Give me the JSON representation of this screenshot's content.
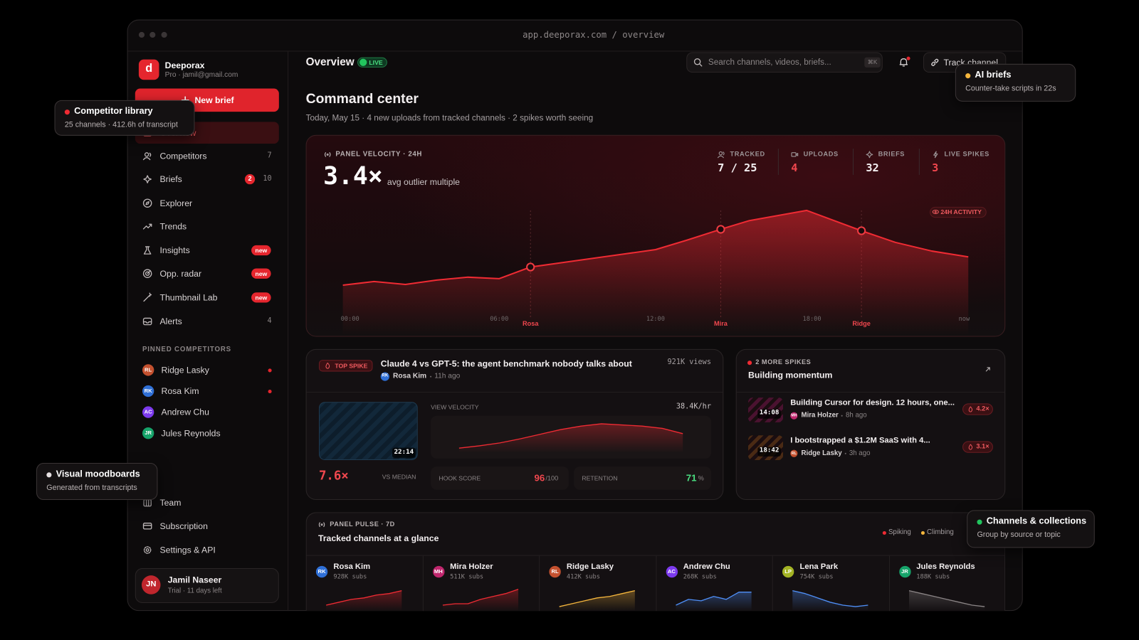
{
  "browser": {
    "url": "app.deeporax.com / overview"
  },
  "sidebar": {
    "brand": {
      "logo": "d",
      "name": "Deeporax",
      "account": "Pro · jamil@gmail.com"
    },
    "new_brief": "New brief",
    "nav": [
      {
        "label": "Overview",
        "active": true
      },
      {
        "label": "Competitors",
        "count": "7"
      },
      {
        "label": "Briefs",
        "badge": "2",
        "count": "10"
      },
      {
        "label": "Explorer"
      },
      {
        "label": "Trends"
      },
      {
        "label": "Insights",
        "tag": "new"
      },
      {
        "label": "Opp. radar",
        "tag": "new"
      },
      {
        "label": "Thumbnail Lab",
        "tag": "new"
      },
      {
        "label": "Alerts",
        "count": "4"
      }
    ],
    "pinned_title": "PINNED COMPETITORS",
    "pinned": [
      {
        "initials": "RL",
        "name": "Ridge Lasky",
        "color": "#c4512f",
        "alert": true
      },
      {
        "initials": "RK",
        "name": "Rosa Kim",
        "color": "#2f6fd6",
        "alert": true
      },
      {
        "initials": "AC",
        "name": "Andrew Chu",
        "color": "#7c3aed",
        "alert": false
      },
      {
        "initials": "JR",
        "name": "Jules Reynolds",
        "color": "#16a36a",
        "alert": false
      }
    ],
    "footer_nav": [
      {
        "label": "Team"
      },
      {
        "label": "Subscription"
      },
      {
        "label": "Settings & API"
      }
    ],
    "user": {
      "initials": "JN",
      "name": "Jamil Naseer",
      "plan": "Trial · 11 days left"
    }
  },
  "topbar": {
    "title": "Overview",
    "status": "LIVE",
    "search_placeholder": "Search channels, videos, briefs...",
    "shortcut": "⌘K",
    "track_button": "Track channel"
  },
  "header": {
    "title": "Command center",
    "subtitle": "Today, May 15 · 4 new uploads from tracked channels · 2 spikes worth seeing"
  },
  "velocity": {
    "label": "PANEL VELOCITY · 24H",
    "headline": "3.4×",
    "caption": "avg outlier multiple",
    "stats": [
      {
        "label": "TRACKED",
        "value": "7 / 25",
        "highlight": false
      },
      {
        "label": "UPLOADS",
        "value": "4",
        "highlight": true
      },
      {
        "label": "BRIEFS",
        "value": "32",
        "highlight": false
      },
      {
        "label": "LIVE SPIKES",
        "value": "3",
        "highlight": true
      }
    ],
    "badge": "24H ACTIVITY",
    "chart": {
      "type": "line",
      "color": "#ef2b33",
      "x": [
        0,
        1.2,
        2.4,
        3.6,
        4.8,
        6.0,
        7.2,
        8.4,
        9.6,
        10.8,
        12.0,
        13.2,
        14.5,
        15.6,
        17.8,
        19.9,
        21.2,
        22.6,
        24
      ],
      "values": [
        2.7,
        3.2,
        2.8,
        3.4,
        3.8,
        3.6,
        5.2,
        5.8,
        6.4,
        7.0,
        7.6,
        8.9,
        10.4,
        11.6,
        13.0,
        10.2,
        8.6,
        7.4,
        6.6
      ],
      "xlim": [
        0,
        24
      ],
      "xticks": [
        {
          "value": 0,
          "label": "00:00"
        },
        {
          "value": 6,
          "label": "06:00"
        },
        {
          "value": 12,
          "label": "12:00"
        },
        {
          "value": 18,
          "label": "18:00"
        },
        {
          "value": 24,
          "label": "now"
        }
      ],
      "spikes": [
        {
          "name": "Rosa",
          "x": 7.2,
          "value": 5.2
        },
        {
          "name": "Mira",
          "x": 14.5,
          "value": 10.4
        },
        {
          "name": "Ridge",
          "x": 19.9,
          "value": 10.2
        }
      ]
    }
  },
  "top_spike": {
    "tag": "TOP SPIKE",
    "title": "Claude 4 vs GPT-5: the agent benchmark nobody talks about",
    "views": "921K views",
    "author": {
      "initials": "RK",
      "name": "Rosa Kim",
      "color": "#2f6fd6"
    },
    "age": "11h ago",
    "duration": "22:14",
    "multiple": "7.6×",
    "multiple_caption": "VS MEDIAN",
    "velocity_label": "VIEW VELOCITY",
    "velocity_value": "38.4K/hr",
    "velocity_chart": {
      "type": "line",
      "color": "#ef2b33",
      "values": [
        1.6,
        2.4,
        3.4,
        4.8,
        6.4,
        8,
        9.2,
        10,
        9.6,
        9.2,
        8.4,
        6.6
      ]
    },
    "hook": {
      "label": "HOOK SCORE",
      "value": "96",
      "unit": "/100"
    },
    "retention": {
      "label": "RETENTION",
      "value": "71",
      "unit": "%"
    }
  },
  "more_spikes": {
    "tag": "2 MORE SPIKES",
    "title": "Building momentum",
    "items": [
      {
        "duration": "14:08",
        "title": "Building Cursor for design. 12 hours, one...",
        "author": {
          "initials": "MH",
          "name": "Mira Holzer",
          "color": "#c0266d"
        },
        "age": "8h ago",
        "multiple": "4.2×",
        "thumb": "#4a1230"
      },
      {
        "duration": "18:42",
        "title": "I bootstrapped a $1.2M SaaS with 4...",
        "author": {
          "initials": "RL",
          "name": "Ridge Lasky",
          "color": "#c4512f"
        },
        "age": "3h ago",
        "multiple": "3.1×",
        "thumb": "#4a2a14"
      }
    ]
  },
  "pulse": {
    "label": "PANEL PULSE · 7D",
    "title": "Tracked channels at a glance",
    "legend": [
      {
        "name": "Spiking",
        "color": "#ef2b33"
      },
      {
        "name": "Climbing",
        "color": "#f5b63d"
      }
    ],
    "channels": [
      {
        "initials": "RK",
        "name": "Rosa Kim",
        "subs": "928K subs",
        "color": "#2f6fd6",
        "spark_color": "#ef2b33",
        "values": [
          1,
          2,
          3,
          3.5,
          4.5,
          5,
          6
        ]
      },
      {
        "initials": "MH",
        "name": "Mira Holzer",
        "subs": "511K subs",
        "color": "#c0266d",
        "spark_color": "#ef2b33",
        "values": [
          1,
          1.5,
          1.5,
          3,
          4,
          5,
          6.5
        ]
      },
      {
        "initials": "RL",
        "name": "Ridge Lasky",
        "subs": "412K subs",
        "color": "#c4512f",
        "spark_color": "#f5b63d",
        "values": [
          0.5,
          1.5,
          2.5,
          3.5,
          4,
          5,
          6
        ]
      },
      {
        "initials": "AC",
        "name": "Andrew Chu",
        "subs": "268K subs",
        "color": "#7c3aed",
        "spark_color": "#4f8ff7",
        "values": [
          1,
          3,
          2.5,
          4,
          3,
          5.5,
          5.5
        ]
      },
      {
        "initials": "LP",
        "name": "Lena Park",
        "subs": "754K subs",
        "color": "#a3b324",
        "spark_color": "#4f8ff7",
        "values": [
          6,
          5,
          3.5,
          2,
          1,
          0.5,
          1
        ]
      },
      {
        "initials": "JR",
        "name": "Jules Reynolds",
        "subs": "188K subs",
        "color": "#16a36a",
        "spark_color": "#8a8485",
        "values": [
          6,
          5,
          4,
          3,
          2,
          1,
          0.5
        ]
      }
    ]
  },
  "callouts": [
    {
      "title": "Competitor library",
      "text": "25 channels · 412.6h of transcript",
      "color": "#ef2b33"
    },
    {
      "title": "AI briefs",
      "text": "Counter-take scripts in 22s",
      "color": "#f5b63d"
    },
    {
      "title": "Visual moodboards",
      "text": "Generated from transcripts",
      "color": "#e5e0e1"
    },
    {
      "title": "Channels & collections",
      "text": "Group by source or topic",
      "color": "#22c55e"
    }
  ]
}
